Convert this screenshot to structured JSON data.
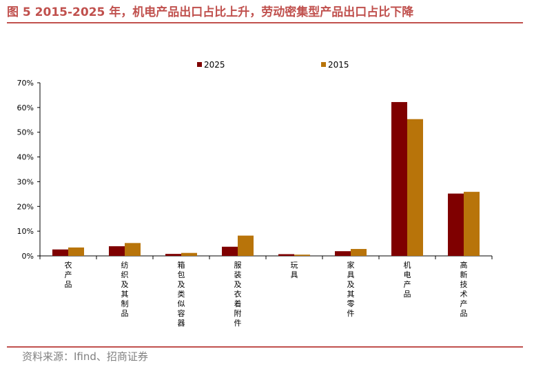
{
  "figure": {
    "title": "图 5 2015-2025 年，机电产品出口占比上升，劳动密集型产品出口占比下降",
    "source": "资料来源：Ifind、招商证券"
  },
  "chart_data": {
    "type": "bar",
    "categories": [
      "农产品",
      "纺织及其制品",
      "箱包及类似容器",
      "服装及衣着附件",
      "玩具",
      "家具及其零件",
      "机电产品",
      "高新技术产品"
    ],
    "series": [
      {
        "name": "2025",
        "values": [
          2.6,
          3.9,
          0.8,
          3.7,
          0.7,
          1.9,
          62.2,
          25.2
        ],
        "color": "#7f0000"
      },
      {
        "name": "2015",
        "values": [
          3.4,
          5.2,
          1.2,
          8.2,
          0.5,
          2.8,
          55.3,
          25.9
        ],
        "color": "#b8740a"
      }
    ],
    "ylim": [
      0,
      70
    ],
    "yticks": [
      "0%",
      "10%",
      "20%",
      "30%",
      "40%",
      "50%",
      "60%",
      "70%"
    ],
    "ytick_values": [
      0,
      10,
      20,
      30,
      40,
      50,
      60,
      70
    ],
    "legend_position": "top-center",
    "grid": false
  }
}
